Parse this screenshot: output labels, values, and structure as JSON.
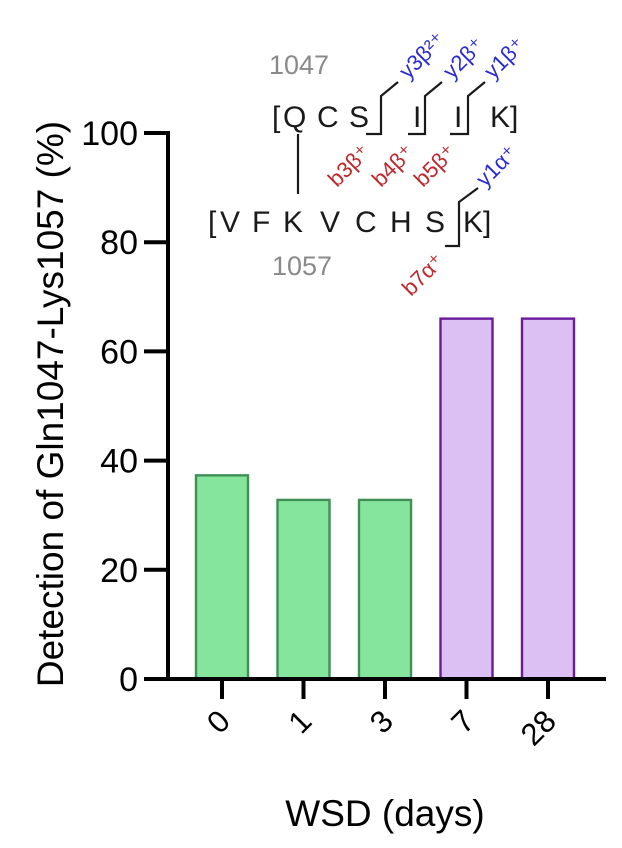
{
  "chart_data": {
    "type": "bar",
    "xlabel": "WSD (days)",
    "ylabel": "Detection of Gln1047-Lys1057 (%)",
    "categories": [
      "0",
      "1",
      "3",
      "7",
      "28"
    ],
    "values": [
      37.3,
      32.8,
      32.8,
      66.0,
      66.0
    ],
    "ylim": [
      0,
      100
    ],
    "yticks": [
      0,
      20,
      40,
      60,
      80,
      100
    ],
    "grid": false,
    "bar_fill_colors": [
      "#86e59c",
      "#86e59c",
      "#86e59c",
      "#dcc0f4",
      "#dcc0f4"
    ],
    "bar_edge_colors": [
      "#3f8f56",
      "#3f8f56",
      "#3f8f56",
      "#6a1b9a",
      "#6a1b9a"
    ]
  },
  "inset": {
    "pos_top": "1047",
    "pos_bottom": "1057",
    "top_chain": "[Q C S / I / I / K]",
    "bottom_chain": "[V F K V C H S / K]",
    "ions_blue": [
      "y3β²⁺",
      "y2β⁺",
      "y1β⁺",
      "y1α⁺"
    ],
    "ions_red": [
      "b3β⁺",
      "b4β⁺",
      "b5β⁺",
      "b7α⁺"
    ],
    "colors": {
      "blue": "#2b2bd6",
      "red": "#c0262c",
      "grey": "#8a8a8a"
    }
  }
}
